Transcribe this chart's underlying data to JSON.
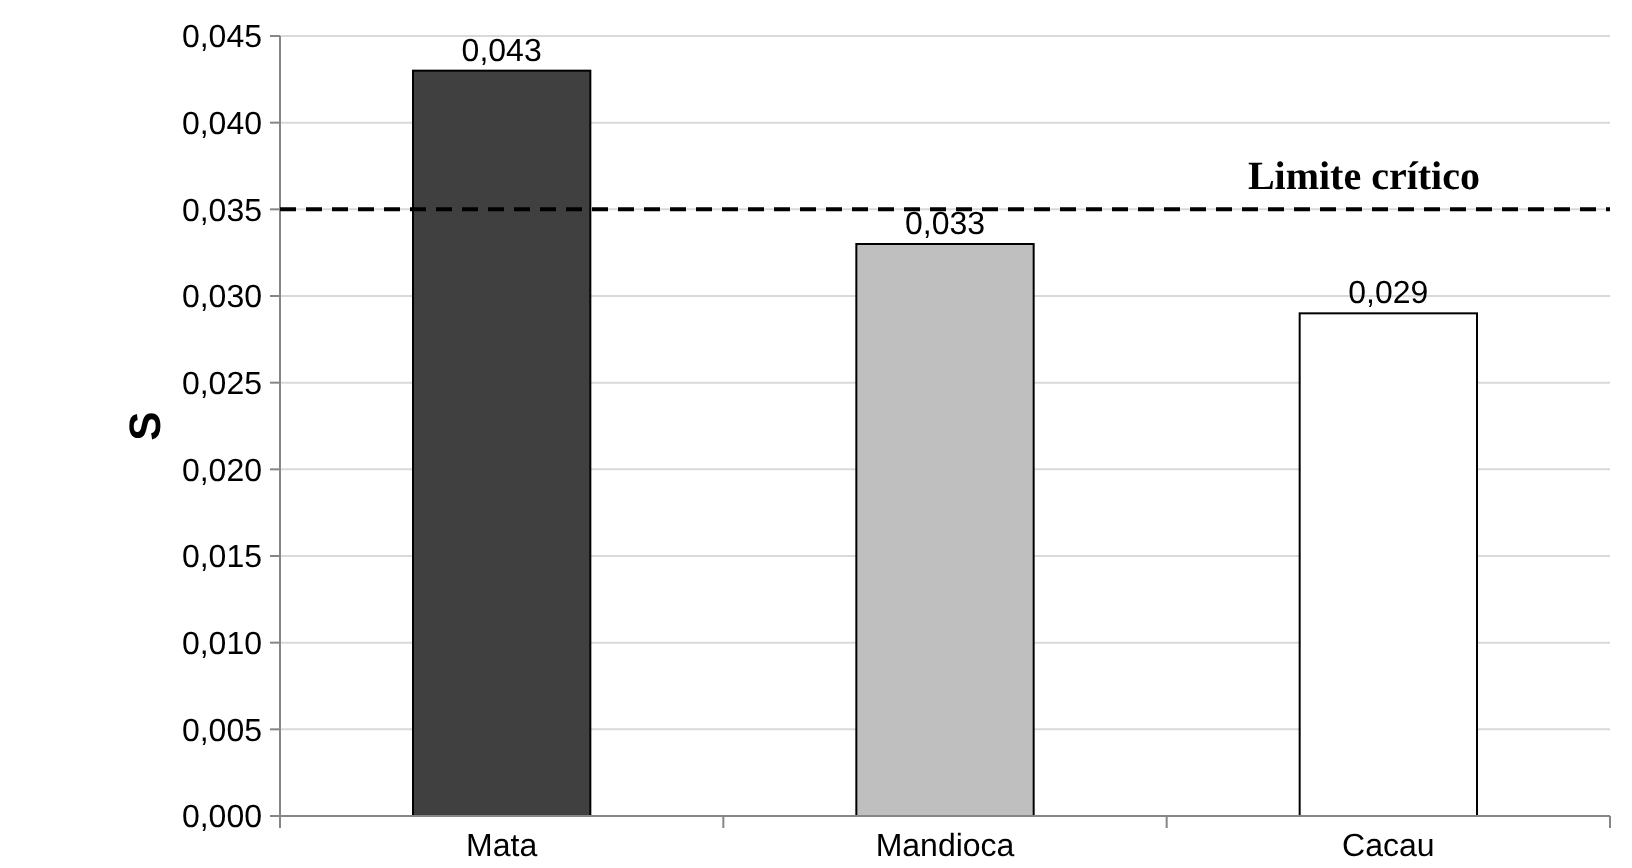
{
  "chart_data": {
    "type": "bar",
    "ylabel": "S",
    "categories": [
      "Mata",
      "Mandioca",
      "Cacau"
    ],
    "values": [
      0.043,
      0.033,
      0.029
    ],
    "colors": [
      "#404040",
      "#bfbfbf",
      "#ffffff"
    ],
    "value_labels": [
      "0,043",
      "0,033",
      "0,029"
    ],
    "ylim": [
      0,
      0.045
    ],
    "yticks": [
      {
        "value": 0,
        "label": "0,000"
      },
      {
        "value": 0.005,
        "label": "0,005"
      },
      {
        "value": 0.01,
        "label": "0,010"
      },
      {
        "value": 0.015,
        "label": "0,015"
      },
      {
        "value": 0.02,
        "label": "0,020"
      },
      {
        "value": 0.025,
        "label": "0,025"
      },
      {
        "value": 0.03,
        "label": "0,030"
      },
      {
        "value": 0.035,
        "label": "0,035"
      },
      {
        "value": 0.04,
        "label": "0,040"
      },
      {
        "value": 0.045,
        "label": "0,045"
      }
    ],
    "ref_lines": [
      {
        "axis": "y",
        "value": 0.035,
        "label": "Limite crítico",
        "color": "#000000",
        "line_style": "dashed"
      }
    ],
    "grid": "y"
  }
}
